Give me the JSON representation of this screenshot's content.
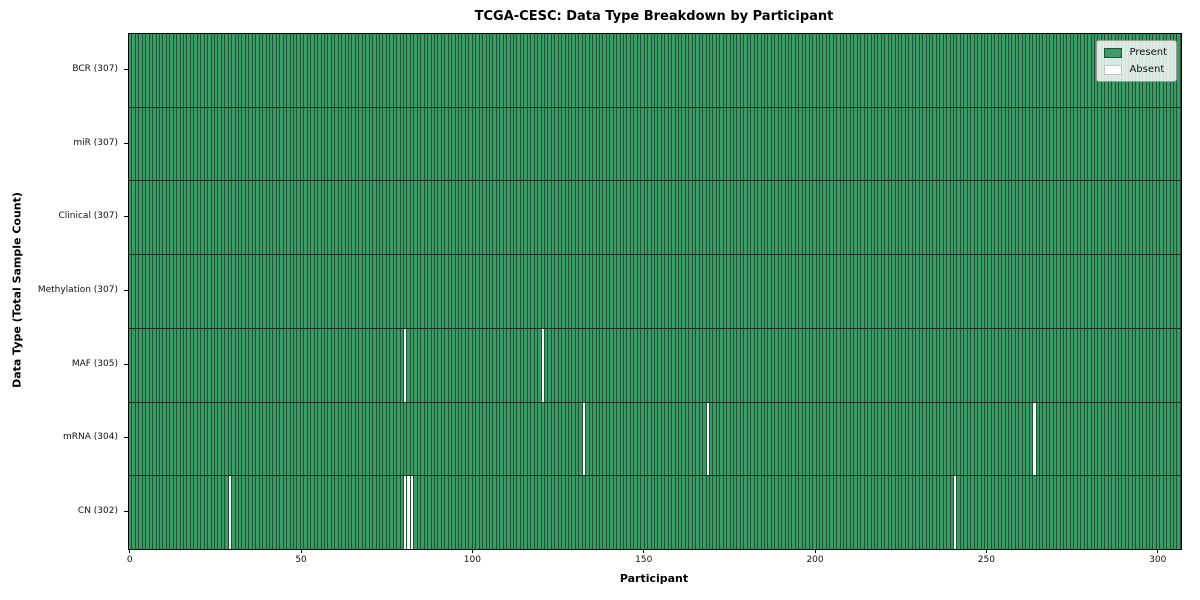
{
  "chart_data": {
    "type": "heatmap",
    "title": "TCGA-CESC: Data Type Breakdown by Participant",
    "xlabel": "Participant",
    "ylabel": "Data Type (Total Sample Count)",
    "n_participants": 307,
    "x_range": [
      -0.5,
      306.5
    ],
    "x_ticks": [
      0,
      50,
      100,
      150,
      200,
      250,
      300
    ],
    "grid": false,
    "rows": [
      {
        "label": "BCR (307)",
        "data_type": "BCR",
        "present_count": 307,
        "absent_participants": []
      },
      {
        "label": "miR (307)",
        "data_type": "miR",
        "present_count": 307,
        "absent_participants": []
      },
      {
        "label": "Clinical (307)",
        "data_type": "Clinical",
        "present_count": 307,
        "absent_participants": []
      },
      {
        "label": "Methylation (307)",
        "data_type": "Methylation",
        "present_count": 307,
        "absent_participants": []
      },
      {
        "label": "MAF (305)",
        "data_type": "MAF",
        "present_count": 305,
        "absent_participants": [
          80,
          120
        ]
      },
      {
        "label": "mRNA (304)",
        "data_type": "mRNA",
        "present_count": 304,
        "absent_participants": [
          132,
          168,
          263
        ]
      },
      {
        "label": "CN (302)",
        "data_type": "CN",
        "present_count": 302,
        "absent_participants": [
          29,
          80,
          81,
          82,
          240
        ]
      }
    ],
    "legend": {
      "position": "upper right",
      "entries": [
        {
          "label": "Present",
          "color": "#3b9a66",
          "edge": "#1c5434"
        },
        {
          "label": "Absent",
          "color": "#ffffff",
          "edge": "#c4c4c4"
        }
      ]
    },
    "colors": {
      "present": "#3b9a66",
      "absent": "#ffffff",
      "bar_edge": "#1c5434",
      "row_separator": "#13301e",
      "frame": "#000000",
      "background": "#ffffff"
    }
  }
}
